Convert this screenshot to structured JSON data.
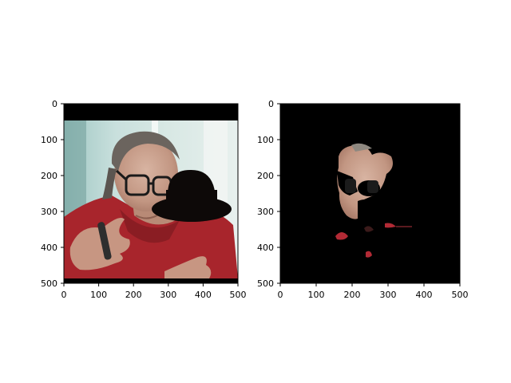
{
  "chart_data": [
    {
      "type": "image",
      "title": "",
      "xlabel": "",
      "ylabel": "",
      "xlim": [
        0,
        500
      ],
      "ylim": [
        500,
        0
      ],
      "x_ticks": [
        "0",
        "100",
        "200",
        "300",
        "400",
        "500"
      ],
      "y_ticks": [
        "0",
        "100",
        "200",
        "300",
        "400",
        "500"
      ],
      "content": "photo of a man in a red shirt with glasses; a black hat-shaped mask covers part of the face"
    },
    {
      "type": "image",
      "title": "",
      "xlabel": "",
      "ylabel": "",
      "xlim": [
        0,
        500
      ],
      "ylim": [
        500,
        0
      ],
      "x_ticks": [
        "0",
        "100",
        "200",
        "300",
        "400",
        "500"
      ],
      "y_ticks": [
        "0",
        "100",
        "200",
        "300",
        "400",
        "500"
      ],
      "content": "segmentation output: only skin/face regions kept on black background"
    }
  ],
  "colors": {
    "axes": "#000000",
    "image_black": "#000000",
    "shirt_red": "#a8252c",
    "skin": "#c9a08c",
    "background_teal": "#b8d8d4",
    "hat": "#0d0908"
  }
}
